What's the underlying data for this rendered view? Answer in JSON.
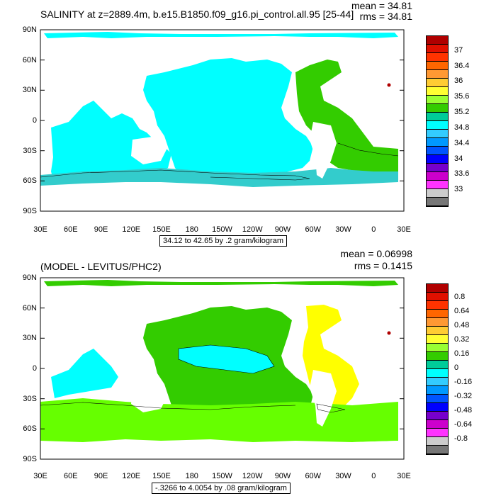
{
  "colors": {
    "land": "#ffffff",
    "ocean_cyan": "#00ffff",
    "ocean_lightcyan": "#a0ffff",
    "green": "#33cc00",
    "lime": "#66ff00",
    "yellow": "#ffff00",
    "darkred": "#b00000"
  },
  "top_panel": {
    "title": "SALINITY at z=2889.4m, b.e15.B1850.f09_g16.pi_control.all.95 [25-44]",
    "mean_text": "mean = 34.81",
    "rms_text": "rms = 34.81",
    "info": "34.12 to 42.65 by .2 gram/kilogram",
    "colorbar": {
      "colors": [
        "#b00000",
        "#e01000",
        "#ff3300",
        "#ff6600",
        "#ff9933",
        "#ffcc33",
        "#ffff33",
        "#99ff33",
        "#33cc00",
        "#00cc99",
        "#00ffff",
        "#33ccff",
        "#0099ff",
        "#0055ff",
        "#0000ff",
        "#7700cc",
        "#cc00cc",
        "#ff33ff",
        "#cccccc",
        "#777777"
      ],
      "labels": [
        "37",
        "36.4",
        "36",
        "35.6",
        "35.2",
        "34.8",
        "34.4",
        "34",
        "33.6",
        "33"
      ]
    }
  },
  "bottom_panel": {
    "title": "(MODEL - LEVITUS/PHC2)",
    "mean_text": "mean = 0.06998",
    "rms_text": "rms = 0.1415",
    "info": "-.3266 to 4.0054 by .08 gram/kilogram",
    "colorbar": {
      "colors": [
        "#b00000",
        "#e01000",
        "#ff3300",
        "#ff6600",
        "#ff9933",
        "#ffcc33",
        "#ffff33",
        "#99ff33",
        "#33cc00",
        "#00cc99",
        "#00ffff",
        "#33ccff",
        "#0099ff",
        "#0055ff",
        "#0000ff",
        "#7700cc",
        "#cc00cc",
        "#ff33ff",
        "#cccccc",
        "#777777"
      ],
      "labels": [
        "0.8",
        "0.64",
        "0.48",
        "0.32",
        "0.16",
        "0",
        "-0.16",
        "-0.32",
        "-0.48",
        "-0.64",
        "-0.8"
      ]
    }
  },
  "axes": {
    "lat_labels": [
      "90N",
      "60N",
      "30N",
      "0",
      "30S",
      "60S",
      "90S"
    ],
    "lon_labels": [
      "30E",
      "60E",
      "90E",
      "120E",
      "150E",
      "180",
      "150W",
      "120W",
      "90W",
      "60W",
      "30W",
      "0",
      "30E"
    ]
  }
}
